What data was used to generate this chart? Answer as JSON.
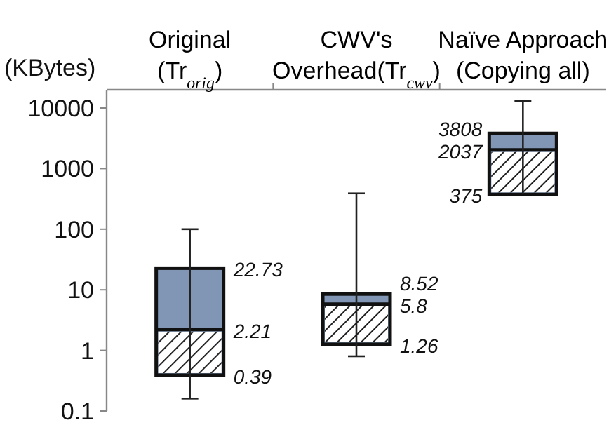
{
  "chart_data": {
    "type": "box",
    "ylabel": "(KBytes)",
    "categories": [
      "Original\n(Tr$_{orig}$)",
      "CWV's\nOverhead(Tr$_{cwv}$)",
      "Naïve Approach\n(Copying all)"
    ],
    "series": [
      {
        "color": "#8096b4",
        "boxes": [
          {
            "low": 0.16,
            "q1": 0.39,
            "median": 2.21,
            "q3": 22.73,
            "high": 100
          },
          {
            "low": 0.8,
            "q1": 1.26,
            "median": 5.8,
            "q3": 8.52,
            "high": 390
          },
          {
            "low": 375,
            "q1": 375,
            "median": 2037,
            "q3": 3808,
            "high": 13000
          }
        ]
      }
    ],
    "annotations": [
      {
        "text": "22.73",
        "x": "Original\n(Tr$_{orig}$)",
        "y": 22.73
      },
      {
        "text": "2.21",
        "x": "Original\n(Tr$_{orig}$)",
        "y": 2.21
      },
      {
        "text": "0.39",
        "x": "Original\n(Tr$_{orig}$)",
        "y": 0.39
      },
      {
        "text": "8.52",
        "x": "CWV's\nOverhead(Tr$_{cwv}$)",
        "y": 8.52
      },
      {
        "text": "5.8",
        "x": "CWV's\nOverhead(Tr$_{cwv}$)",
        "y": 5.8
      },
      {
        "text": "1.26",
        "x": "CWV's\nOverhead(Tr$_{cwv}$)",
        "y": 1.26
      },
      {
        "text": "3808",
        "x": "Naïve Approach\n(Copying all)",
        "y": 3808
      },
      {
        "text": "2037",
        "x": "Naïve Approach\n(Copying all)",
        "y": 2037
      },
      {
        "text": "375",
        "x": "Naïve Approach\n(Copying all)",
        "y": 375
      }
    ],
    "log": true,
    "ylim": [
      0.1,
      20000
    ],
    "yticks": [
      0.1,
      1,
      10,
      100,
      1000,
      10000
    ]
  }
}
